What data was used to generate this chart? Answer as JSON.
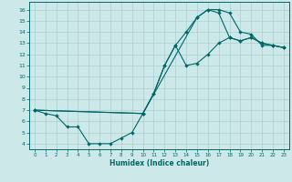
{
  "xlabel": "Humidex (Indice chaleur)",
  "bg_color": "#cce8e8",
  "line_color": "#006868",
  "grid_color": "#aacfcf",
  "xlim": [
    -0.5,
    23.5
  ],
  "ylim": [
    3.5,
    16.7
  ],
  "xticks": [
    0,
    1,
    2,
    3,
    4,
    5,
    6,
    7,
    8,
    9,
    10,
    11,
    12,
    13,
    14,
    15,
    16,
    17,
    18,
    19,
    20,
    21,
    22,
    23
  ],
  "yticks": [
    4,
    5,
    6,
    7,
    8,
    9,
    10,
    11,
    12,
    13,
    14,
    15,
    16
  ],
  "line1_x": [
    0,
    1,
    2,
    3,
    4,
    5,
    6,
    7,
    8,
    9,
    10,
    11,
    12,
    13,
    14,
    15,
    16,
    17,
    18,
    19,
    20,
    21,
    22,
    23
  ],
  "line1_y": [
    7.0,
    6.7,
    6.5,
    5.5,
    5.5,
    4.0,
    4.0,
    4.0,
    4.5,
    5.0,
    6.7,
    8.5,
    11.0,
    12.8,
    14.0,
    15.3,
    16.0,
    16.0,
    15.7,
    14.0,
    13.8,
    12.8,
    12.8,
    12.6
  ],
  "line2_x": [
    0,
    10,
    15,
    16,
    17,
    18,
    19,
    20,
    21,
    22,
    23
  ],
  "line2_y": [
    7.0,
    6.7,
    15.3,
    16.0,
    15.7,
    13.5,
    13.2,
    13.5,
    13.0,
    12.8,
    12.6
  ],
  "line3_x": [
    0,
    10,
    11,
    12,
    13,
    14,
    15,
    16,
    17,
    18,
    19,
    20,
    21,
    22,
    23
  ],
  "line3_y": [
    7.0,
    6.7,
    8.5,
    11.0,
    12.8,
    11.0,
    11.2,
    12.0,
    13.0,
    13.5,
    13.2,
    13.5,
    13.0,
    12.8,
    12.6
  ]
}
